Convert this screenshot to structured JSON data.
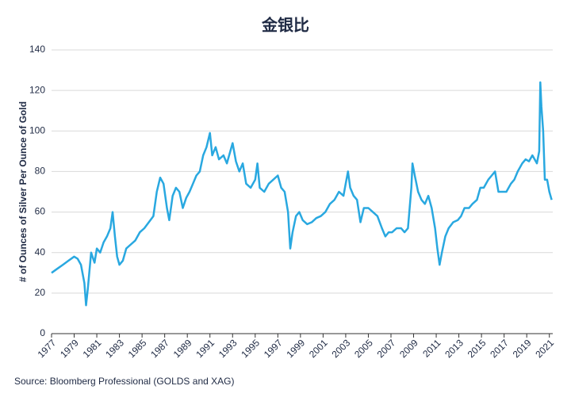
{
  "chart_data": {
    "type": "line",
    "title": "金银比",
    "y_label": "# of Ounces of Silver Per Ounce of Gold",
    "source": "Source: Bloomberg Professional (GOLDS and XAG)",
    "color": "#29a8e0",
    "grid": true,
    "xlim": [
      1977,
      2021.3
    ],
    "ylim": [
      0,
      140
    ],
    "xticks": [
      1977,
      1979,
      1981,
      1983,
      1985,
      1987,
      1989,
      1991,
      1993,
      1995,
      1997,
      1999,
      2001,
      2003,
      2005,
      2007,
      2009,
      2011,
      2013,
      2015,
      2017,
      2019,
      2021
    ],
    "yticks": [
      0,
      20,
      40,
      60,
      80,
      100,
      120,
      140
    ],
    "x": [
      1977.0,
      1977.5,
      1978.0,
      1978.5,
      1979.0,
      1979.3,
      1979.6,
      1979.9,
      1980.05,
      1980.2,
      1980.5,
      1980.8,
      1981.0,
      1981.3,
      1981.6,
      1981.9,
      1982.2,
      1982.4,
      1982.6,
      1982.8,
      1983.0,
      1983.3,
      1983.6,
      1984.0,
      1984.4,
      1984.8,
      1985.2,
      1985.6,
      1986.0,
      1986.3,
      1986.6,
      1986.9,
      1987.2,
      1987.4,
      1987.7,
      1988.0,
      1988.3,
      1988.6,
      1988.9,
      1989.2,
      1989.5,
      1989.8,
      1990.1,
      1990.4,
      1990.7,
      1991.0,
      1991.2,
      1991.5,
      1991.8,
      1992.2,
      1992.5,
      1992.8,
      1993.0,
      1993.3,
      1993.6,
      1993.9,
      1994.2,
      1994.6,
      1995.0,
      1995.2,
      1995.4,
      1995.8,
      1996.2,
      1996.6,
      1997.0,
      1997.3,
      1997.6,
      1997.9,
      1998.1,
      1998.3,
      1998.6,
      1998.9,
      1999.2,
      1999.6,
      2000.0,
      2000.4,
      2000.8,
      2001.2,
      2001.6,
      2002.0,
      2002.4,
      2002.8,
      2003.0,
      2003.2,
      2003.4,
      2003.7,
      2004.0,
      2004.3,
      2004.6,
      2005.0,
      2005.4,
      2005.8,
      2006.2,
      2006.5,
      2006.8,
      2007.1,
      2007.5,
      2007.9,
      2008.2,
      2008.5,
      2008.8,
      2008.9,
      2009.1,
      2009.4,
      2009.7,
      2010.0,
      2010.3,
      2010.6,
      2010.9,
      2011.1,
      2011.3,
      2011.5,
      2011.8,
      2012.1,
      2012.5,
      2012.9,
      2013.2,
      2013.5,
      2013.9,
      2014.2,
      2014.6,
      2014.9,
      2015.2,
      2015.6,
      2015.9,
      2016.2,
      2016.5,
      2016.9,
      2017.2,
      2017.6,
      2017.9,
      2018.2,
      2018.6,
      2018.9,
      2019.2,
      2019.5,
      2019.7,
      2019.9,
      2020.1,
      2020.2,
      2020.3,
      2020.45,
      2020.6,
      2020.8,
      2021.0,
      2021.2
    ],
    "values": [
      30,
      32,
      34,
      36,
      38,
      37,
      34,
      25,
      14,
      22,
      40,
      35,
      42,
      40,
      45,
      48,
      52,
      60,
      48,
      38,
      34,
      36,
      42,
      44,
      46,
      50,
      52,
      55,
      58,
      70,
      77,
      74,
      62,
      56,
      68,
      72,
      70,
      62,
      67,
      70,
      74,
      78,
      80,
      88,
      92,
      99,
      88,
      92,
      86,
      88,
      84,
      90,
      94,
      85,
      80,
      84,
      74,
      72,
      76,
      84,
      72,
      70,
      74,
      76,
      78,
      72,
      70,
      60,
      42,
      50,
      58,
      60,
      56,
      54,
      55,
      57,
      58,
      60,
      64,
      66,
      70,
      68,
      74,
      80,
      72,
      68,
      66,
      55,
      62,
      62,
      60,
      58,
      52,
      48,
      50,
      50,
      52,
      52,
      50,
      52,
      72,
      84,
      78,
      70,
      66,
      64,
      68,
      62,
      52,
      42,
      34,
      40,
      48,
      52,
      55,
      56,
      58,
      62,
      62,
      64,
      66,
      72,
      72,
      76,
      78,
      80,
      70,
      70,
      70,
      74,
      76,
      80,
      84,
      86,
      85,
      88,
      86,
      84,
      90,
      124,
      112,
      100,
      76,
      76,
      70,
      66
    ]
  }
}
